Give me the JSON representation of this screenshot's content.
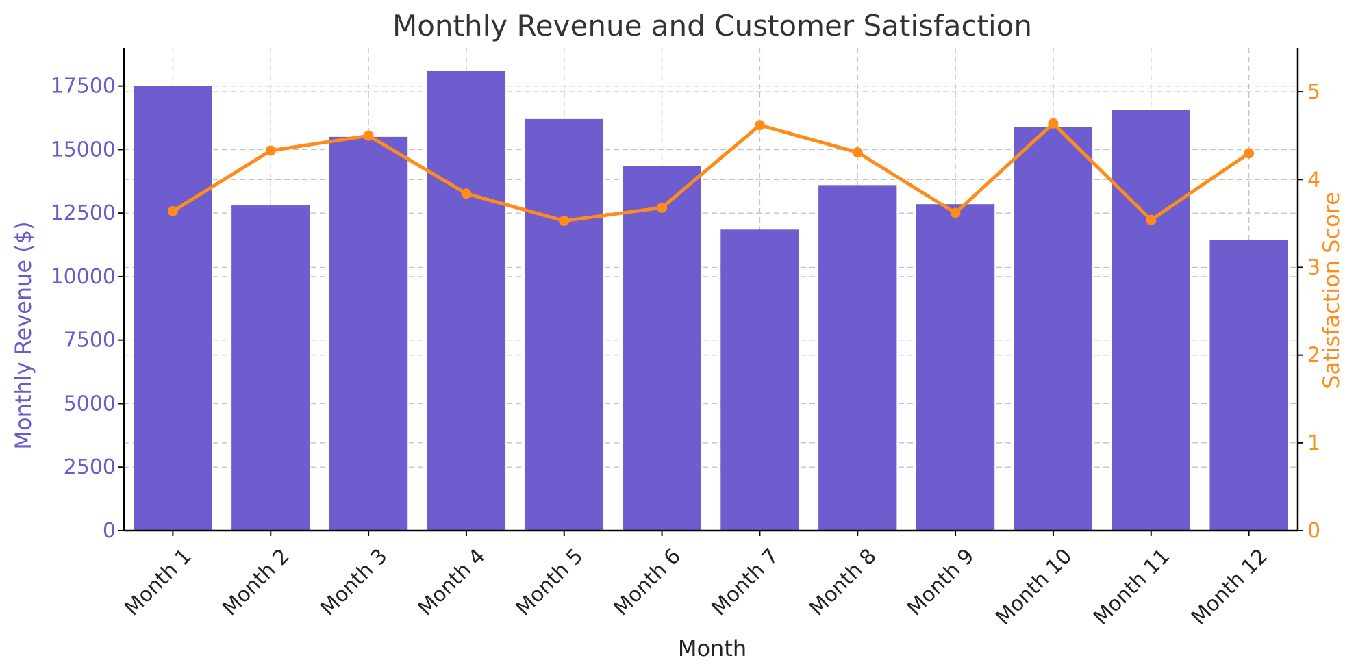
{
  "chart_data": {
    "type": "bar",
    "title": "Monthly Revenue and Customer Satisfaction",
    "xlabel": "Month",
    "ylabel": "Monthly Revenue ($)",
    "y2label": "Satisfaction Score",
    "categories": [
      "Month 1",
      "Month 2",
      "Month 3",
      "Month 4",
      "Month 5",
      "Month 6",
      "Month 7",
      "Month 8",
      "Month 9",
      "Month 10",
      "Month 11",
      "Month 12"
    ],
    "ylim": [
      0,
      19000
    ],
    "y2lim": [
      0,
      5.5
    ],
    "yticks": [
      0,
      2500,
      5000,
      7500,
      10000,
      12500,
      15000,
      17500
    ],
    "y2ticks": [
      0,
      1,
      2,
      3,
      4,
      5
    ],
    "grid": true,
    "series": [
      {
        "type": "bar",
        "axis": "left",
        "color": "#6a5acd",
        "values": [
          17500,
          12800,
          15500,
          18100,
          16200,
          14350,
          11850,
          13600,
          12850,
          15900,
          16550,
          11450
        ]
      },
      {
        "type": "line",
        "axis": "right",
        "color": "#ff8c1a",
        "values": [
          3.64,
          4.33,
          4.5,
          3.84,
          3.53,
          3.68,
          4.62,
          4.31,
          3.62,
          4.64,
          3.54,
          4.3
        ]
      }
    ]
  }
}
